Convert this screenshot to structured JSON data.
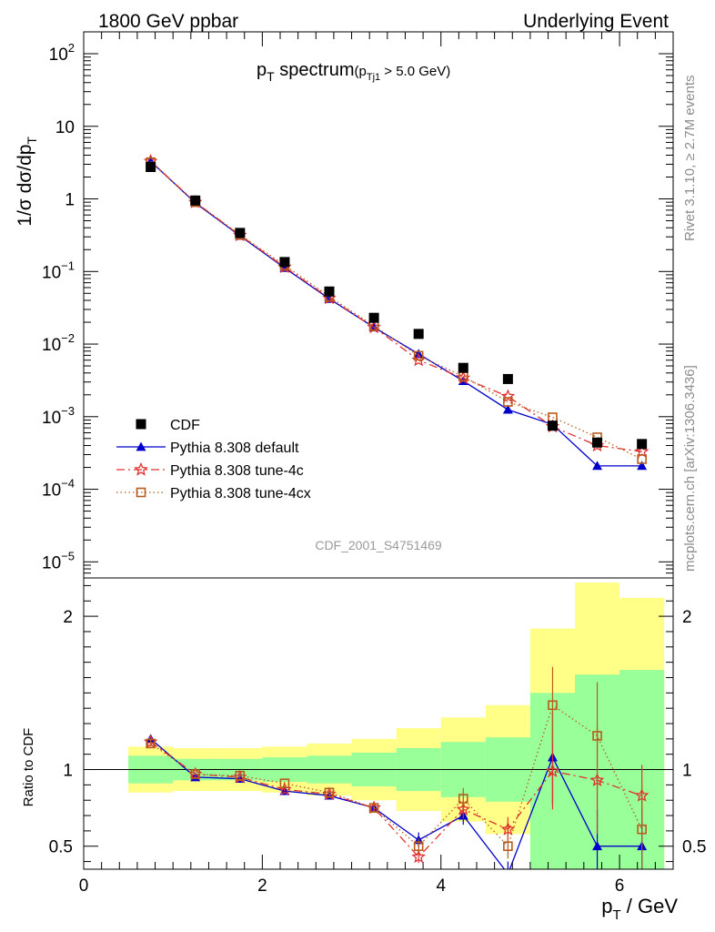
{
  "header": {
    "left": "1800 GeV ppbar",
    "right": "Underlying Event"
  },
  "side_text": {
    "rivet": "Rivet 3.1.10, ≥ 2.7M events",
    "mcplots": "mcplots.cern.ch [arXiv:1306.3436]"
  },
  "chart_data": [
    {
      "type": "scatter",
      "title_main": "p",
      "title_main_sub": "T",
      "title_rest": " spectrum",
      "title_paren_open": "(p",
      "title_paren_sub": "Tj1",
      "title_paren_rest": " > 5.0 GeV)",
      "ylabel": "1/σ dσ/dp",
      "ylabel_sub": "T",
      "yscale": "log",
      "ylim": [
        6e-06,
        200
      ],
      "xlim": [
        0,
        6.6
      ],
      "watermark": "CDF_2001_S4751469",
      "y_ticks": [
        {
          "value": 1e-05,
          "base": "10",
          "exp": "−5"
        },
        {
          "value": 0.0001,
          "base": "10",
          "exp": "−4"
        },
        {
          "value": 0.001,
          "base": "10",
          "exp": "−3"
        },
        {
          "value": 0.01,
          "base": "10",
          "exp": "−2"
        },
        {
          "value": 0.1,
          "base": "10",
          "exp": "−1"
        },
        {
          "value": 1,
          "base": "1",
          "exp": ""
        },
        {
          "value": 10,
          "base": "10",
          "exp": ""
        },
        {
          "value": 100,
          "base": "10",
          "exp": "2"
        }
      ],
      "legend_position": "bottom-left",
      "x": [
        0.75,
        1.25,
        1.75,
        2.25,
        2.75,
        3.25,
        3.75,
        4.25,
        4.75,
        5.25,
        5.75,
        6.25
      ],
      "series": [
        {
          "name": "CDF",
          "color": "#000000",
          "marker": "square-filled",
          "line": "none",
          "values": [
            2.75,
            0.95,
            0.34,
            0.135,
            0.053,
            0.023,
            0.0138,
            0.0047,
            0.0033,
            0.00075,
            0.00044,
            0.00042
          ]
        },
        {
          "name": "Pythia 8.308 default",
          "color": "#0000cc",
          "marker": "triangle-filled",
          "line": "solid",
          "values": [
            3.3,
            0.88,
            0.31,
            0.112,
            0.042,
            0.017,
            0.0073,
            0.0031,
            0.00125,
            0.00078,
            0.00021,
            0.00021
          ]
        },
        {
          "name": "Pythia 8.308 tune-4c",
          "color": "#e03030",
          "marker": "star-open",
          "line": "dashdot",
          "values": [
            3.3,
            0.9,
            0.315,
            0.115,
            0.043,
            0.017,
            0.006,
            0.0034,
            0.0019,
            0.00073,
            0.0004,
            0.00033
          ]
        },
        {
          "name": "Pythia 8.308 tune-4cx",
          "color": "#b85c1e",
          "marker": "square-open",
          "line": "dotted",
          "values": [
            3.2,
            0.9,
            0.32,
            0.122,
            0.045,
            0.0178,
            0.0069,
            0.0036,
            0.0016,
            0.00098,
            0.00052,
            0.00026
          ]
        }
      ]
    },
    {
      "type": "line",
      "ylabel": "Ratio to CDF",
      "xlabel": "p",
      "xlabel_sub": "T",
      "xlabel_rest": " / GeV",
      "xlim": [
        0,
        6.6
      ],
      "ylim": [
        0.35,
        2.25
      ],
      "x_ticks": [
        0,
        2,
        4,
        6
      ],
      "y_ticks": [
        0.5,
        1,
        2
      ],
      "reference_line": 1,
      "bins": [
        [
          0.5,
          1.0
        ],
        [
          1.0,
          1.5
        ],
        [
          1.5,
          2.0
        ],
        [
          2.0,
          2.5
        ],
        [
          2.5,
          3.0
        ],
        [
          3.0,
          3.5
        ],
        [
          3.5,
          4.0
        ],
        [
          4.0,
          4.5
        ],
        [
          4.5,
          5.0
        ],
        [
          5.0,
          5.5
        ],
        [
          5.5,
          6.0
        ],
        [
          6.0,
          6.5
        ]
      ],
      "band_inner": [
        [
          0.91,
          1.09
        ],
        [
          0.93,
          1.07
        ],
        [
          0.93,
          1.07
        ],
        [
          0.92,
          1.08
        ],
        [
          0.91,
          1.09
        ],
        [
          0.89,
          1.11
        ],
        [
          0.86,
          1.14
        ],
        [
          0.82,
          1.18
        ],
        [
          0.79,
          1.21
        ],
        [
          0.35,
          1.5
        ],
        [
          0.35,
          1.62
        ],
        [
          0.35,
          1.65
        ]
      ],
      "band_outer": [
        [
          0.85,
          1.15
        ],
        [
          0.86,
          1.14
        ],
        [
          0.86,
          1.14
        ],
        [
          0.85,
          1.15
        ],
        [
          0.83,
          1.17
        ],
        [
          0.8,
          1.2
        ],
        [
          0.73,
          1.27
        ],
        [
          0.66,
          1.34
        ],
        [
          0.58,
          1.42
        ],
        [
          0.35,
          1.92
        ],
        [
          0.35,
          2.22
        ],
        [
          0.35,
          2.12
        ]
      ],
      "x": [
        0.75,
        1.25,
        1.75,
        2.25,
        2.75,
        3.25,
        3.75,
        4.25,
        4.75,
        5.25,
        5.75,
        6.25
      ],
      "series": [
        {
          "name": "Pythia 8.308 default",
          "color": "#0000cc",
          "marker": "triangle-filled",
          "line": "solid",
          "values": [
            1.2,
            0.95,
            0.94,
            0.86,
            0.83,
            0.75,
            0.54,
            0.7,
            0.32,
            1.08,
            0.5,
            0.5
          ],
          "errors": [
            0.02,
            0.01,
            0.01,
            0.01,
            0.01,
            0.03,
            0.05,
            0.06,
            0.08,
            0.3,
            0.24,
            0.24
          ]
        },
        {
          "name": "Pythia 8.308 tune-4c",
          "color": "#e03030",
          "marker": "star-open",
          "line": "dashdot",
          "values": [
            1.18,
            0.97,
            0.95,
            0.87,
            0.84,
            0.75,
            0.43,
            0.74,
            0.61,
            0.99,
            0.93,
            0.83
          ],
          "errors": [
            0.02,
            0.01,
            0.01,
            0.01,
            0.01,
            0.03,
            0.04,
            0.06,
            0.08,
            0.25,
            0.35,
            0.2
          ]
        },
        {
          "name": "Pythia 8.308 tune-4cx",
          "color": "#b85c1e",
          "marker": "square-open",
          "line": "dotted",
          "values": [
            1.17,
            0.97,
            0.96,
            0.91,
            0.85,
            0.75,
            0.5,
            0.81,
            0.5,
            1.42,
            1.22,
            0.61
          ],
          "errors": [
            0.02,
            0.01,
            0.01,
            0.01,
            0.01,
            0.03,
            0.05,
            0.07,
            0.08,
            0.25,
            0.35,
            0.3
          ]
        }
      ]
    }
  ],
  "colors": {
    "band_inner": "#99ff99",
    "band_outer": "#ffff88",
    "axis": "#000000",
    "side_text": "#8c8c8c",
    "watermark": "#9a9a9a"
  }
}
